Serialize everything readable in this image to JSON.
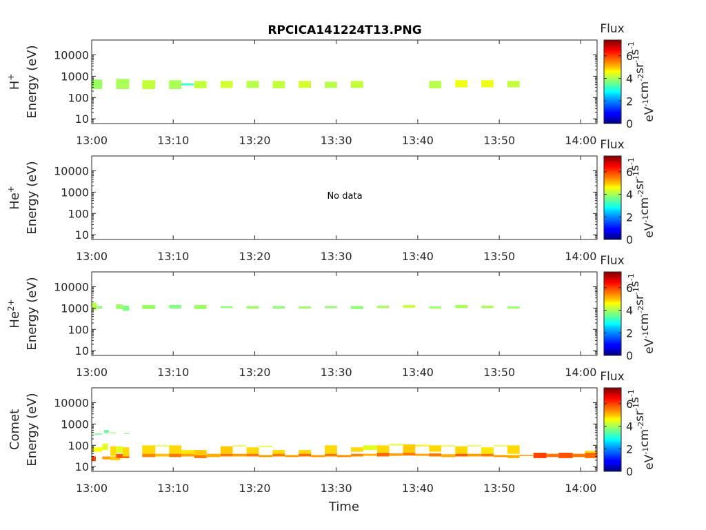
{
  "chart_data": {
    "type": "heatmap",
    "title": "RPCICA141224T13.PNG",
    "xlabel": "Time",
    "x_ticks": [
      "13:00",
      "13:10",
      "13:20",
      "13:30",
      "13:40",
      "13:50",
      "14:00"
    ],
    "x_range_minutes": [
      0,
      62
    ],
    "y_ticks": [
      "10",
      "100",
      "1000",
      "10000"
    ],
    "y_range_eV": [
      6,
      50000
    ],
    "y_scale": "log",
    "colorbar": {
      "label": "Flux",
      "units": "eV-1cm-2sr-1s-1",
      "ticks": [
        "0",
        "2",
        "4",
        "6"
      ],
      "range": [
        0,
        7.4
      ],
      "colormap": "jet"
    },
    "panels": [
      {
        "species": "H+",
        "base": "H",
        "sup": "+",
        "ylabel": "Energy (eV)",
        "note": "",
        "blocks": [
          {
            "t0": 0.0,
            "t1": 1.3,
            "e0": 250,
            "e1": 700,
            "v": 3.9
          },
          {
            "t0": 3.0,
            "t1": 4.6,
            "e0": 250,
            "e1": 750,
            "v": 4.0
          },
          {
            "t0": 6.2,
            "t1": 7.8,
            "e0": 250,
            "e1": 650,
            "v": 4.2
          },
          {
            "t0": 9.5,
            "t1": 11.0,
            "e0": 250,
            "e1": 650,
            "v": 4.0
          },
          {
            "t0": 11.0,
            "t1": 12.5,
            "e0": 370,
            "e1": 460,
            "v": 3.2
          },
          {
            "t0": 12.6,
            "t1": 14.1,
            "e0": 270,
            "e1": 600,
            "v": 4.2
          },
          {
            "t0": 15.8,
            "t1": 17.3,
            "e0": 280,
            "e1": 600,
            "v": 4.3
          },
          {
            "t0": 19.0,
            "t1": 20.5,
            "e0": 280,
            "e1": 600,
            "v": 4.1
          },
          {
            "t0": 22.2,
            "t1": 23.7,
            "e0": 270,
            "e1": 600,
            "v": 4.2
          },
          {
            "t0": 25.4,
            "t1": 26.9,
            "e0": 280,
            "e1": 600,
            "v": 4.3
          },
          {
            "t0": 28.6,
            "t1": 30.1,
            "e0": 280,
            "e1": 550,
            "v": 4.1
          },
          {
            "t0": 31.8,
            "t1": 33.3,
            "e0": 280,
            "e1": 600,
            "v": 4.2
          },
          {
            "t0": 41.4,
            "t1": 42.9,
            "e0": 270,
            "e1": 600,
            "v": 4.1
          },
          {
            "t0": 44.6,
            "t1": 46.1,
            "e0": 300,
            "e1": 650,
            "v": 4.5
          },
          {
            "t0": 47.8,
            "t1": 49.3,
            "e0": 300,
            "e1": 650,
            "v": 4.5
          },
          {
            "t0": 51.0,
            "t1": 52.5,
            "e0": 300,
            "e1": 600,
            "v": 4.2
          }
        ]
      },
      {
        "species": "He+",
        "base": "He",
        "sup": "+",
        "ylabel": "Energy (eV)",
        "note": "No data",
        "blocks": []
      },
      {
        "species": "He2+",
        "base": "He",
        "sup": "2+",
        "ylabel": "Energy (eV)",
        "note": "",
        "blocks": [
          {
            "t0": 0.0,
            "t1": 0.6,
            "e0": 800,
            "e1": 1800,
            "v": 4.1
          },
          {
            "t0": 0.6,
            "t1": 1.3,
            "e0": 950,
            "e1": 1250,
            "v": 3.8
          },
          {
            "t0": 3.0,
            "t1": 3.8,
            "e0": 900,
            "e1": 1500,
            "v": 3.9
          },
          {
            "t0": 3.8,
            "t1": 4.6,
            "e0": 750,
            "e1": 1300,
            "v": 3.7
          },
          {
            "t0": 6.2,
            "t1": 7.8,
            "e0": 900,
            "e1": 1400,
            "v": 3.9
          },
          {
            "t0": 9.5,
            "t1": 11.0,
            "e0": 950,
            "e1": 1400,
            "v": 3.7
          },
          {
            "t0": 12.6,
            "t1": 14.1,
            "e0": 900,
            "e1": 1400,
            "v": 3.9
          },
          {
            "t0": 15.8,
            "t1": 17.3,
            "e0": 1000,
            "e1": 1200,
            "v": 3.8
          },
          {
            "t0": 19.0,
            "t1": 20.5,
            "e0": 950,
            "e1": 1250,
            "v": 3.9
          },
          {
            "t0": 22.2,
            "t1": 23.7,
            "e0": 950,
            "e1": 1250,
            "v": 3.8
          },
          {
            "t0": 25.4,
            "t1": 26.9,
            "e0": 950,
            "e1": 1200,
            "v": 3.9
          },
          {
            "t0": 28.6,
            "t1": 30.1,
            "e0": 1000,
            "e1": 1250,
            "v": 3.8
          },
          {
            "t0": 31.8,
            "t1": 33.3,
            "e0": 900,
            "e1": 1250,
            "v": 3.8
          },
          {
            "t0": 35.0,
            "t1": 36.5,
            "e0": 1000,
            "e1": 1300,
            "v": 4.0
          },
          {
            "t0": 38.2,
            "t1": 39.7,
            "e0": 1050,
            "e1": 1400,
            "v": 4.2
          },
          {
            "t0": 41.4,
            "t1": 42.9,
            "e0": 950,
            "e1": 1200,
            "v": 3.9
          },
          {
            "t0": 44.6,
            "t1": 46.1,
            "e0": 1000,
            "e1": 1400,
            "v": 4.0
          },
          {
            "t0": 47.8,
            "t1": 49.3,
            "e0": 1000,
            "e1": 1300,
            "v": 4.0
          },
          {
            "t0": 51.0,
            "t1": 52.5,
            "e0": 950,
            "e1": 1200,
            "v": 3.9
          }
        ]
      },
      {
        "species": "Comet",
        "base": "Comet",
        "sup": "",
        "ylabel": "Energy (eV)",
        "note": "",
        "blocks": [
          {
            "t0": 0.0,
            "t1": 0.5,
            "e0": 18,
            "e1": 30,
            "v": 6.0
          },
          {
            "t0": 0.0,
            "t1": 1.3,
            "e0": 50,
            "e1": 80,
            "v": 4.6
          },
          {
            "t0": 0.3,
            "t1": 1.3,
            "e0": 320,
            "e1": 360,
            "v": 3.7
          },
          {
            "t0": 1.3,
            "t1": 3.0,
            "e0": 22,
            "e1": 30,
            "v": 5.3
          },
          {
            "t0": 1.3,
            "t1": 2.0,
            "e0": 60,
            "e1": 120,
            "v": 4.4
          },
          {
            "t0": 1.5,
            "t1": 2.1,
            "e0": 380,
            "e1": 520,
            "v": 3.5
          },
          {
            "t0": 2.2,
            "t1": 3.0,
            "e0": 360,
            "e1": 400,
            "v": 3.8
          },
          {
            "t0": 2.3,
            "t1": 3.5,
            "e0": 20,
            "e1": 30,
            "v": 5.0
          },
          {
            "t0": 2.3,
            "t1": 3.0,
            "e0": 32,
            "e1": 90,
            "v": 4.9
          },
          {
            "t0": 3.0,
            "t1": 4.6,
            "e0": 25,
            "e1": 40,
            "v": 5.8
          },
          {
            "t0": 3.0,
            "t1": 3.8,
            "e0": 45,
            "e1": 90,
            "v": 4.4
          },
          {
            "t0": 3.8,
            "t1": 4.6,
            "e0": 30,
            "e1": 80,
            "v": 4.9
          },
          {
            "t0": 4.0,
            "t1": 4.6,
            "e0": 340,
            "e1": 380,
            "v": 3.8
          },
          {
            "t0": 6.2,
            "t1": 7.8,
            "e0": 28,
            "e1": 40,
            "v": 5.5
          },
          {
            "t0": 6.2,
            "t1": 7.8,
            "e0": 40,
            "e1": 100,
            "v": 4.9
          },
          {
            "t0": 7.8,
            "t1": 9.5,
            "e0": 30,
            "e1": 40,
            "v": 5.1
          },
          {
            "t0": 7.8,
            "t1": 9.5,
            "e0": 90,
            "e1": 100,
            "v": 4.4
          },
          {
            "t0": 9.5,
            "t1": 11.0,
            "e0": 28,
            "e1": 40,
            "v": 5.6
          },
          {
            "t0": 9.5,
            "t1": 11.0,
            "e0": 40,
            "e1": 100,
            "v": 4.9
          },
          {
            "t0": 11.0,
            "t1": 12.6,
            "e0": 30,
            "e1": 40,
            "v": 5.3
          },
          {
            "t0": 11.0,
            "t1": 12.6,
            "e0": 40,
            "e1": 60,
            "v": 4.8
          },
          {
            "t0": 12.6,
            "t1": 14.1,
            "e0": 25,
            "e1": 35,
            "v": 5.6
          },
          {
            "t0": 12.6,
            "t1": 14.1,
            "e0": 35,
            "e1": 60,
            "v": 5.0
          },
          {
            "t0": 14.1,
            "t1": 15.8,
            "e0": 28,
            "e1": 40,
            "v": 5.2
          },
          {
            "t0": 15.8,
            "t1": 17.3,
            "e0": 30,
            "e1": 40,
            "v": 5.6
          },
          {
            "t0": 15.8,
            "t1": 17.3,
            "e0": 40,
            "e1": 90,
            "v": 5.0
          },
          {
            "t0": 17.3,
            "t1": 19.0,
            "e0": 30,
            "e1": 40,
            "v": 5.3
          },
          {
            "t0": 17.3,
            "t1": 19.0,
            "e0": 90,
            "e1": 100,
            "v": 4.5
          },
          {
            "t0": 19.0,
            "t1": 20.5,
            "e0": 30,
            "e1": 40,
            "v": 5.6
          },
          {
            "t0": 19.0,
            "t1": 20.5,
            "e0": 40,
            "e1": 80,
            "v": 4.9
          },
          {
            "t0": 20.5,
            "t1": 22.2,
            "e0": 28,
            "e1": 35,
            "v": 5.3
          },
          {
            "t0": 20.5,
            "t1": 22.2,
            "e0": 85,
            "e1": 95,
            "v": 4.5
          },
          {
            "t0": 22.2,
            "t1": 23.7,
            "e0": 30,
            "e1": 40,
            "v": 5.6
          },
          {
            "t0": 22.2,
            "t1": 23.7,
            "e0": 40,
            "e1": 60,
            "v": 4.9
          },
          {
            "t0": 23.7,
            "t1": 25.4,
            "e0": 28,
            "e1": 35,
            "v": 5.3
          },
          {
            "t0": 25.4,
            "t1": 26.9,
            "e0": 30,
            "e1": 40,
            "v": 5.7
          },
          {
            "t0": 25.4,
            "t1": 26.9,
            "e0": 40,
            "e1": 60,
            "v": 4.9
          },
          {
            "t0": 26.9,
            "t1": 28.6,
            "e0": 28,
            "e1": 35,
            "v": 5.3
          },
          {
            "t0": 28.6,
            "t1": 30.1,
            "e0": 30,
            "e1": 40,
            "v": 5.6
          },
          {
            "t0": 28.6,
            "t1": 30.1,
            "e0": 40,
            "e1": 100,
            "v": 4.9
          },
          {
            "t0": 30.1,
            "t1": 31.8,
            "e0": 28,
            "e1": 35,
            "v": 5.4
          },
          {
            "t0": 31.8,
            "t1": 33.3,
            "e0": 30,
            "e1": 40,
            "v": 5.5
          },
          {
            "t0": 31.8,
            "t1": 33.3,
            "e0": 50,
            "e1": 80,
            "v": 4.9
          },
          {
            "t0": 33.3,
            "t1": 35.0,
            "e0": 60,
            "e1": 100,
            "v": 4.4
          },
          {
            "t0": 33.3,
            "t1": 35.0,
            "e0": 32,
            "e1": 40,
            "v": 5.2
          },
          {
            "t0": 35.0,
            "t1": 36.5,
            "e0": 30,
            "e1": 45,
            "v": 5.7
          },
          {
            "t0": 35.0,
            "t1": 36.5,
            "e0": 45,
            "e1": 100,
            "v": 4.9
          },
          {
            "t0": 36.5,
            "t1": 38.2,
            "e0": 32,
            "e1": 42,
            "v": 5.3
          },
          {
            "t0": 36.5,
            "t1": 38.2,
            "e0": 100,
            "e1": 115,
            "v": 4.4
          },
          {
            "t0": 38.2,
            "t1": 39.7,
            "e0": 33,
            "e1": 45,
            "v": 5.6
          },
          {
            "t0": 38.2,
            "t1": 39.7,
            "e0": 45,
            "e1": 110,
            "v": 5.0
          },
          {
            "t0": 39.7,
            "t1": 41.4,
            "e0": 32,
            "e1": 40,
            "v": 5.3
          },
          {
            "t0": 39.7,
            "t1": 41.4,
            "e0": 90,
            "e1": 105,
            "v": 4.7
          },
          {
            "t0": 41.4,
            "t1": 42.9,
            "e0": 30,
            "e1": 42,
            "v": 5.6
          },
          {
            "t0": 41.4,
            "t1": 42.9,
            "e0": 50,
            "e1": 100,
            "v": 4.9
          },
          {
            "t0": 42.9,
            "t1": 44.6,
            "e0": 28,
            "e1": 38,
            "v": 5.2
          },
          {
            "t0": 42.9,
            "t1": 44.6,
            "e0": 90,
            "e1": 100,
            "v": 4.5
          },
          {
            "t0": 44.6,
            "t1": 46.1,
            "e0": 30,
            "e1": 40,
            "v": 5.8
          },
          {
            "t0": 44.6,
            "t1": 46.1,
            "e0": 40,
            "e1": 90,
            "v": 4.9
          },
          {
            "t0": 46.1,
            "t1": 47.8,
            "e0": 30,
            "e1": 40,
            "v": 5.3
          },
          {
            "t0": 46.1,
            "t1": 47.8,
            "e0": 90,
            "e1": 100,
            "v": 4.4
          },
          {
            "t0": 47.8,
            "t1": 49.3,
            "e0": 30,
            "e1": 40,
            "v": 5.6
          },
          {
            "t0": 47.8,
            "t1": 49.3,
            "e0": 40,
            "e1": 80,
            "v": 4.8
          },
          {
            "t0": 49.3,
            "t1": 51.0,
            "e0": 28,
            "e1": 35,
            "v": 5.3
          },
          {
            "t0": 49.3,
            "t1": 51.0,
            "e0": 90,
            "e1": 100,
            "v": 4.5
          },
          {
            "t0": 51.0,
            "t1": 52.5,
            "e0": 25,
            "e1": 35,
            "v": 5.2
          },
          {
            "t0": 51.0,
            "t1": 52.5,
            "e0": 40,
            "e1": 100,
            "v": 4.9
          },
          {
            "t0": 52.5,
            "t1": 54.2,
            "e0": 32,
            "e1": 36,
            "v": 5.4
          },
          {
            "t0": 54.2,
            "t1": 55.8,
            "e0": 25,
            "e1": 45,
            "v": 6.0
          },
          {
            "t0": 55.8,
            "t1": 57.3,
            "e0": 28,
            "e1": 40,
            "v": 5.6
          },
          {
            "t0": 57.3,
            "t1": 59.0,
            "e0": 25,
            "e1": 45,
            "v": 5.9
          },
          {
            "t0": 59.0,
            "t1": 60.5,
            "e0": 28,
            "e1": 40,
            "v": 5.6
          },
          {
            "t0": 60.5,
            "t1": 62.0,
            "e0": 25,
            "e1": 45,
            "v": 5.7
          },
          {
            "t0": 60.5,
            "t1": 62.0,
            "e0": 45,
            "e1": 55,
            "v": 4.9
          }
        ]
      }
    ]
  }
}
